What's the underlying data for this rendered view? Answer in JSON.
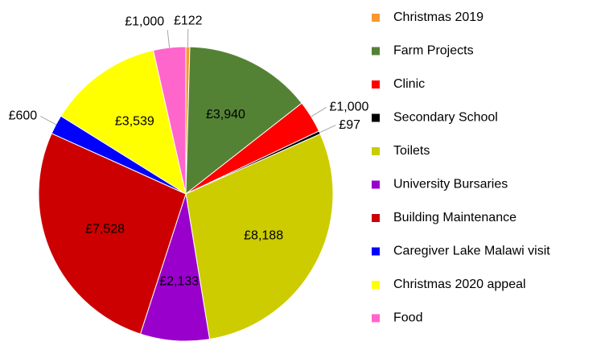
{
  "chart_data": {
    "type": "pie",
    "categories": [
      "Christmas 2019",
      "Farm Projects",
      "Clinic",
      "Secondary School",
      "Toilets",
      "University Bursaries",
      "Building Maintenance",
      "Caregiver Lake Malawi visit",
      "Christmas 2020 appeal",
      "Food"
    ],
    "values": [
      122,
      3940,
      1000,
      97,
      8188,
      2133,
      7528,
      600,
      3539,
      1000
    ],
    "value_labels": [
      "£122",
      "£3,940",
      "£1,000",
      "£97",
      "£8,188",
      "£2,133",
      "£7,528",
      "£600",
      "£3,539",
      "£1,000"
    ],
    "colors": [
      "#f79a2e",
      "#548235",
      "#ff0000",
      "#000000",
      "#cccc00",
      "#9900cc",
      "#cc0000",
      "#0000ff",
      "#ffff00",
      "#ff66cc"
    ],
    "legend": "right"
  }
}
